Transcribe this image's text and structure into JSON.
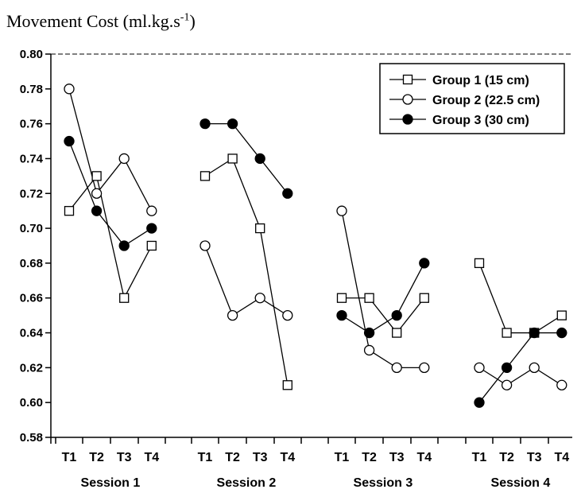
{
  "chart_data": {
    "type": "line",
    "ylabel_main": "Movement Cost (ml.kg.s",
    "ylabel_sup": "-1",
    "ylabel_close": ")",
    "ylim": [
      0.58,
      0.8
    ],
    "ytick_step": 0.02,
    "grid": false,
    "legend_position": "top-right",
    "sessions": [
      "Session 1",
      "Session 2",
      "Session 3",
      "Session 4"
    ],
    "trials": [
      "T1",
      "T2",
      "T3",
      "T4"
    ],
    "series": [
      {
        "name": "Group 1 (15 cm)",
        "marker": "open-square",
        "values": [
          [
            0.71,
            0.73,
            0.66,
            0.69
          ],
          [
            0.73,
            0.74,
            0.7,
            0.61
          ],
          [
            0.66,
            0.66,
            0.64,
            0.66
          ],
          [
            0.68,
            0.64,
            0.64,
            0.65
          ]
        ]
      },
      {
        "name": "Group 2 (22.5 cm)",
        "marker": "open-circle",
        "values": [
          [
            0.78,
            0.72,
            0.74,
            0.71
          ],
          [
            0.69,
            0.65,
            0.66,
            0.65
          ],
          [
            0.71,
            0.63,
            0.62,
            0.62
          ],
          [
            0.62,
            0.61,
            0.62,
            0.61
          ]
        ]
      },
      {
        "name": "Group 3 (30 cm)",
        "marker": "filled-circle",
        "values": [
          [
            0.75,
            0.71,
            0.69,
            0.7
          ],
          [
            0.76,
            0.76,
            0.74,
            0.72
          ],
          [
            0.65,
            0.64,
            0.65,
            0.68
          ],
          [
            0.6,
            0.62,
            0.64,
            0.64
          ]
        ]
      }
    ]
  }
}
